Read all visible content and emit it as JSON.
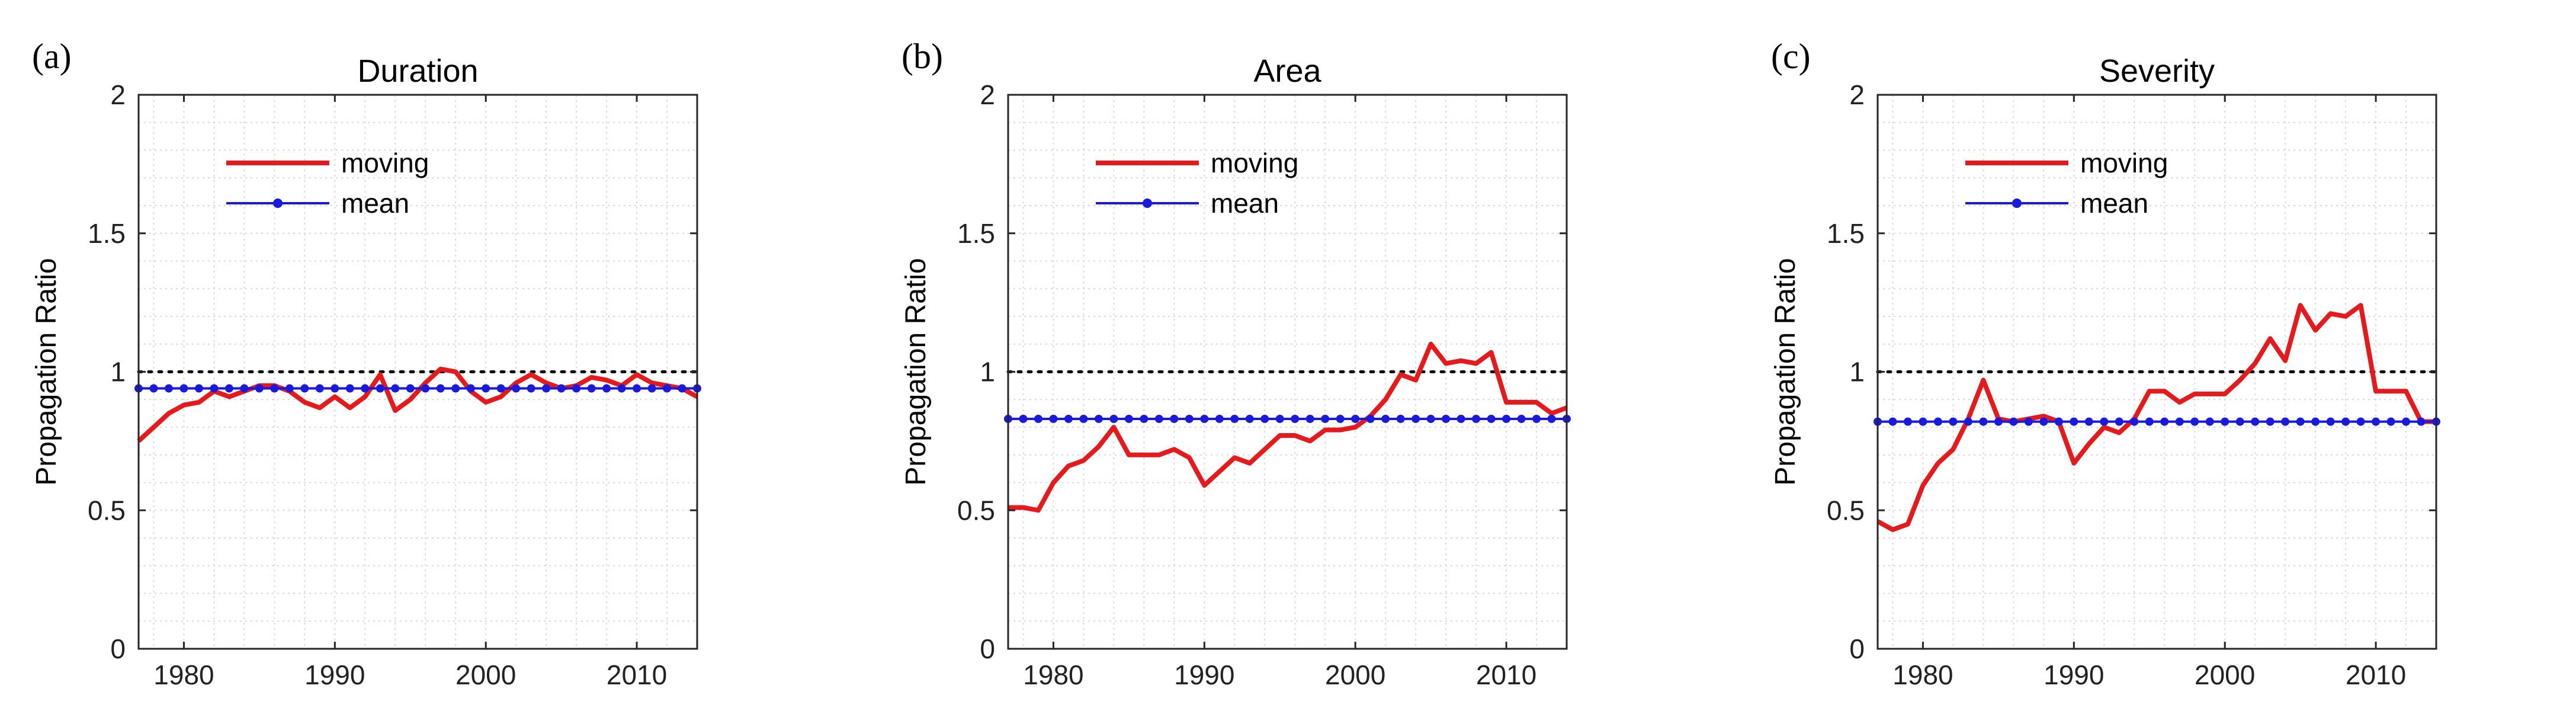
{
  "chart_data": [
    {
      "panel_label": "(a)",
      "title": "Duration",
      "type": "line",
      "xlabel": "",
      "ylabel": "Propagation Ratio",
      "xlim": [
        1977,
        2014
      ],
      "ylim": [
        0,
        2
      ],
      "xticks": [
        1980,
        1990,
        2000,
        2010
      ],
      "yticks": [
        0,
        0.5,
        1,
        1.5,
        2
      ],
      "ytick_labels": [
        "0",
        "0.5",
        "1",
        "1.5",
        "2"
      ],
      "grid": true,
      "reference_line": 1,
      "legend_position": "upper-left",
      "x": [
        1977,
        1978,
        1979,
        1980,
        1981,
        1982,
        1983,
        1984,
        1985,
        1986,
        1987,
        1988,
        1989,
        1990,
        1991,
        1992,
        1993,
        1994,
        1995,
        1996,
        1997,
        1998,
        1999,
        2000,
        2001,
        2002,
        2003,
        2004,
        2005,
        2006,
        2007,
        2008,
        2009,
        2010,
        2011,
        2012,
        2013,
        2014
      ],
      "series": [
        {
          "name": "moving",
          "color": "#e41a1c",
          "values": [
            0.75,
            0.8,
            0.85,
            0.88,
            0.89,
            0.93,
            0.91,
            0.93,
            0.95,
            0.95,
            0.93,
            0.89,
            0.87,
            0.91,
            0.87,
            0.91,
            0.99,
            0.86,
            0.9,
            0.96,
            1.01,
            1.0,
            0.93,
            0.89,
            0.91,
            0.96,
            0.99,
            0.96,
            0.94,
            0.95,
            0.98,
            0.97,
            0.95,
            0.99,
            0.96,
            0.95,
            0.94,
            0.91
          ]
        },
        {
          "name": "mean",
          "color": "#1a1adc",
          "values": [
            0.94,
            0.94,
            0.94,
            0.94,
            0.94,
            0.94,
            0.94,
            0.94,
            0.94,
            0.94,
            0.94,
            0.94,
            0.94,
            0.94,
            0.94,
            0.94,
            0.94,
            0.94,
            0.94,
            0.94,
            0.94,
            0.94,
            0.94,
            0.94,
            0.94,
            0.94,
            0.94,
            0.94,
            0.94,
            0.94,
            0.94,
            0.94,
            0.94,
            0.94,
            0.94,
            0.94,
            0.94,
            0.94
          ]
        }
      ]
    },
    {
      "panel_label": "(b)",
      "title": "Area",
      "type": "line",
      "xlabel": "",
      "ylabel": "Propagation Ratio",
      "xlim": [
        1977,
        2014
      ],
      "ylim": [
        0,
        2
      ],
      "xticks": [
        1980,
        1990,
        2000,
        2010
      ],
      "yticks": [
        0,
        0.5,
        1,
        1.5,
        2
      ],
      "ytick_labels": [
        "0",
        "0.5",
        "1",
        "1.5",
        "2"
      ],
      "grid": true,
      "reference_line": 1,
      "legend_position": "upper-left",
      "x": [
        1977,
        1978,
        1979,
        1980,
        1981,
        1982,
        1983,
        1984,
        1985,
        1986,
        1987,
        1988,
        1989,
        1990,
        1991,
        1992,
        1993,
        1994,
        1995,
        1996,
        1997,
        1998,
        1999,
        2000,
        2001,
        2002,
        2003,
        2004,
        2005,
        2006,
        2007,
        2008,
        2009,
        2010,
        2011,
        2012,
        2013,
        2014
      ],
      "series": [
        {
          "name": "moving",
          "color": "#e41a1c",
          "values": [
            0.51,
            0.51,
            0.5,
            0.6,
            0.66,
            0.68,
            0.73,
            0.8,
            0.7,
            0.7,
            0.7,
            0.72,
            0.69,
            0.59,
            0.64,
            0.69,
            0.67,
            0.72,
            0.77,
            0.77,
            0.75,
            0.79,
            0.79,
            0.8,
            0.84,
            0.9,
            0.99,
            0.97,
            1.1,
            1.03,
            1.04,
            1.03,
            1.07,
            0.89,
            0.89,
            0.89,
            0.85,
            0.87
          ]
        },
        {
          "name": "mean",
          "color": "#1a1adc",
          "values": [
            0.83,
            0.83,
            0.83,
            0.83,
            0.83,
            0.83,
            0.83,
            0.83,
            0.83,
            0.83,
            0.83,
            0.83,
            0.83,
            0.83,
            0.83,
            0.83,
            0.83,
            0.83,
            0.83,
            0.83,
            0.83,
            0.83,
            0.83,
            0.83,
            0.83,
            0.83,
            0.83,
            0.83,
            0.83,
            0.83,
            0.83,
            0.83,
            0.83,
            0.83,
            0.83,
            0.83,
            0.83,
            0.83
          ]
        }
      ]
    },
    {
      "panel_label": "(c)",
      "title": "Severity",
      "type": "line",
      "xlabel": "",
      "ylabel": "Propagation Ratio",
      "xlim": [
        1977,
        2014
      ],
      "ylim": [
        0,
        2
      ],
      "xticks": [
        1980,
        1990,
        2000,
        2010
      ],
      "yticks": [
        0,
        0.5,
        1,
        1.5,
        2
      ],
      "ytick_labels": [
        "0",
        "0.5",
        "1",
        "1.5",
        "2"
      ],
      "grid": true,
      "reference_line": 1,
      "legend_position": "upper-left",
      "x": [
        1977,
        1978,
        1979,
        1980,
        1981,
        1982,
        1983,
        1984,
        1985,
        1986,
        1987,
        1988,
        1989,
        1990,
        1991,
        1992,
        1993,
        1994,
        1995,
        1996,
        1997,
        1998,
        1999,
        2000,
        2001,
        2002,
        2003,
        2004,
        2005,
        2006,
        2007,
        2008,
        2009,
        2010,
        2011,
        2012,
        2013,
        2014
      ],
      "series": [
        {
          "name": "moving",
          "color": "#e41a1c",
          "values": [
            0.46,
            0.43,
            0.45,
            0.59,
            0.67,
            0.72,
            0.83,
            0.97,
            0.83,
            0.82,
            0.83,
            0.84,
            0.82,
            0.67,
            0.74,
            0.8,
            0.78,
            0.83,
            0.93,
            0.93,
            0.89,
            0.92,
            0.92,
            0.92,
            0.97,
            1.03,
            1.12,
            1.04,
            1.24,
            1.15,
            1.21,
            1.2,
            1.24,
            0.93,
            0.93,
            0.93,
            0.82,
            0.82
          ]
        },
        {
          "name": "mean",
          "color": "#1a1adc",
          "values": [
            0.82,
            0.82,
            0.82,
            0.82,
            0.82,
            0.82,
            0.82,
            0.82,
            0.82,
            0.82,
            0.82,
            0.82,
            0.82,
            0.82,
            0.82,
            0.82,
            0.82,
            0.82,
            0.82,
            0.82,
            0.82,
            0.82,
            0.82,
            0.82,
            0.82,
            0.82,
            0.82,
            0.82,
            0.82,
            0.82,
            0.82,
            0.82,
            0.82,
            0.82,
            0.82,
            0.82,
            0.82,
            0.82
          ]
        }
      ]
    }
  ]
}
